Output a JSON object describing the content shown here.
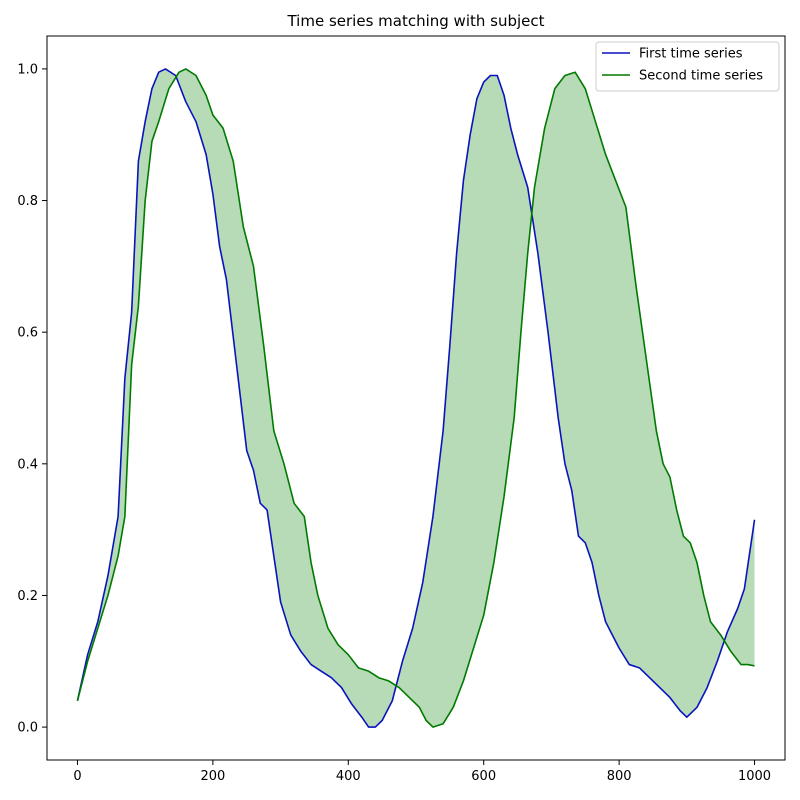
{
  "chart_data": {
    "type": "line",
    "title": "Time series matching with subject",
    "xlabel": "",
    "ylabel": "",
    "xlim": [
      -45,
      1045
    ],
    "ylim": [
      -0.05,
      1.05
    ],
    "xticks": [
      0,
      200,
      400,
      600,
      800,
      1000
    ],
    "xtick_labels": [
      "0",
      "200",
      "400",
      "600",
      "800",
      "1000"
    ],
    "yticks": [
      0.0,
      0.2,
      0.4,
      0.6,
      0.8,
      1.0
    ],
    "ytick_labels": [
      "0.0",
      "0.2",
      "0.4",
      "0.6",
      "0.8",
      "1.0"
    ],
    "grid": false,
    "legend": "top-right",
    "fill_between": {
      "color": "#b7dbb7"
    },
    "series": [
      {
        "name": "First time series",
        "color": "#0a14be",
        "points": [
          [
            0,
            0.04
          ],
          [
            15,
            0.11
          ],
          [
            30,
            0.16
          ],
          [
            45,
            0.23
          ],
          [
            60,
            0.32
          ],
          [
            70,
            0.53
          ],
          [
            80,
            0.63
          ],
          [
            90,
            0.86
          ],
          [
            100,
            0.92
          ],
          [
            110,
            0.97
          ],
          [
            120,
            0.995
          ],
          [
            130,
            1.0
          ],
          [
            145,
            0.99
          ],
          [
            160,
            0.95
          ],
          [
            175,
            0.92
          ],
          [
            190,
            0.87
          ],
          [
            200,
            0.81
          ],
          [
            210,
            0.73
          ],
          [
            220,
            0.68
          ],
          [
            235,
            0.55
          ],
          [
            250,
            0.42
          ],
          [
            260,
            0.39
          ],
          [
            270,
            0.34
          ],
          [
            280,
            0.33
          ],
          [
            290,
            0.26
          ],
          [
            300,
            0.19
          ],
          [
            315,
            0.14
          ],
          [
            330,
            0.115
          ],
          [
            345,
            0.095
          ],
          [
            360,
            0.085
          ],
          [
            375,
            0.075
          ],
          [
            390,
            0.06
          ],
          [
            405,
            0.035
          ],
          [
            420,
            0.015
          ],
          [
            430,
            0.0
          ],
          [
            440,
            0.0
          ],
          [
            450,
            0.01
          ],
          [
            465,
            0.04
          ],
          [
            480,
            0.1
          ],
          [
            495,
            0.15
          ],
          [
            510,
            0.22
          ],
          [
            525,
            0.32
          ],
          [
            540,
            0.45
          ],
          [
            550,
            0.58
          ],
          [
            560,
            0.72
          ],
          [
            570,
            0.83
          ],
          [
            580,
            0.9
          ],
          [
            590,
            0.955
          ],
          [
            600,
            0.98
          ],
          [
            610,
            0.99
          ],
          [
            620,
            0.99
          ],
          [
            630,
            0.96
          ],
          [
            640,
            0.91
          ],
          [
            650,
            0.87
          ],
          [
            665,
            0.82
          ],
          [
            680,
            0.72
          ],
          [
            695,
            0.6
          ],
          [
            710,
            0.47
          ],
          [
            720,
            0.4
          ],
          [
            730,
            0.36
          ],
          [
            740,
            0.29
          ],
          [
            750,
            0.28
          ],
          [
            760,
            0.25
          ],
          [
            770,
            0.2
          ],
          [
            780,
            0.16
          ],
          [
            790,
            0.14
          ],
          [
            800,
            0.12
          ],
          [
            815,
            0.095
          ],
          [
            830,
            0.09
          ],
          [
            845,
            0.075
          ],
          [
            860,
            0.06
          ],
          [
            875,
            0.045
          ],
          [
            890,
            0.025
          ],
          [
            900,
            0.015
          ],
          [
            915,
            0.03
          ],
          [
            930,
            0.06
          ],
          [
            945,
            0.1
          ],
          [
            960,
            0.145
          ],
          [
            975,
            0.18
          ],
          [
            985,
            0.21
          ],
          [
            1000,
            0.315
          ]
        ]
      },
      {
        "name": "Second time series",
        "color": "#007a00",
        "points": [
          [
            0,
            0.04
          ],
          [
            15,
            0.1
          ],
          [
            30,
            0.15
          ],
          [
            45,
            0.2
          ],
          [
            60,
            0.26
          ],
          [
            70,
            0.32
          ],
          [
            80,
            0.55
          ],
          [
            90,
            0.64
          ],
          [
            100,
            0.8
          ],
          [
            110,
            0.89
          ],
          [
            120,
            0.92
          ],
          [
            135,
            0.97
          ],
          [
            150,
            0.995
          ],
          [
            160,
            1.0
          ],
          [
            175,
            0.99
          ],
          [
            190,
            0.96
          ],
          [
            200,
            0.93
          ],
          [
            215,
            0.91
          ],
          [
            230,
            0.86
          ],
          [
            245,
            0.76
          ],
          [
            260,
            0.7
          ],
          [
            275,
            0.58
          ],
          [
            290,
            0.45
          ],
          [
            305,
            0.4
          ],
          [
            320,
            0.34
          ],
          [
            335,
            0.32
          ],
          [
            345,
            0.25
          ],
          [
            355,
            0.2
          ],
          [
            370,
            0.15
          ],
          [
            385,
            0.125
          ],
          [
            400,
            0.11
          ],
          [
            415,
            0.09
          ],
          [
            430,
            0.085
          ],
          [
            445,
            0.075
          ],
          [
            460,
            0.07
          ],
          [
            475,
            0.06
          ],
          [
            490,
            0.045
          ],
          [
            505,
            0.03
          ],
          [
            515,
            0.01
          ],
          [
            525,
            0.0
          ],
          [
            540,
            0.005
          ],
          [
            555,
            0.03
          ],
          [
            570,
            0.07
          ],
          [
            585,
            0.12
          ],
          [
            600,
            0.17
          ],
          [
            615,
            0.25
          ],
          [
            630,
            0.35
          ],
          [
            645,
            0.47
          ],
          [
            655,
            0.6
          ],
          [
            665,
            0.72
          ],
          [
            675,
            0.82
          ],
          [
            690,
            0.91
          ],
          [
            705,
            0.97
          ],
          [
            720,
            0.99
          ],
          [
            735,
            0.995
          ],
          [
            750,
            0.97
          ],
          [
            765,
            0.92
          ],
          [
            780,
            0.87
          ],
          [
            795,
            0.83
          ],
          [
            810,
            0.79
          ],
          [
            825,
            0.67
          ],
          [
            840,
            0.56
          ],
          [
            855,
            0.45
          ],
          [
            865,
            0.4
          ],
          [
            875,
            0.38
          ],
          [
            885,
            0.33
          ],
          [
            895,
            0.29
          ],
          [
            905,
            0.28
          ],
          [
            915,
            0.25
          ],
          [
            925,
            0.2
          ],
          [
            935,
            0.16
          ],
          [
            950,
            0.14
          ],
          [
            965,
            0.115
          ],
          [
            980,
            0.095
          ],
          [
            990,
            0.095
          ],
          [
            1000,
            0.093
          ]
        ]
      }
    ]
  }
}
